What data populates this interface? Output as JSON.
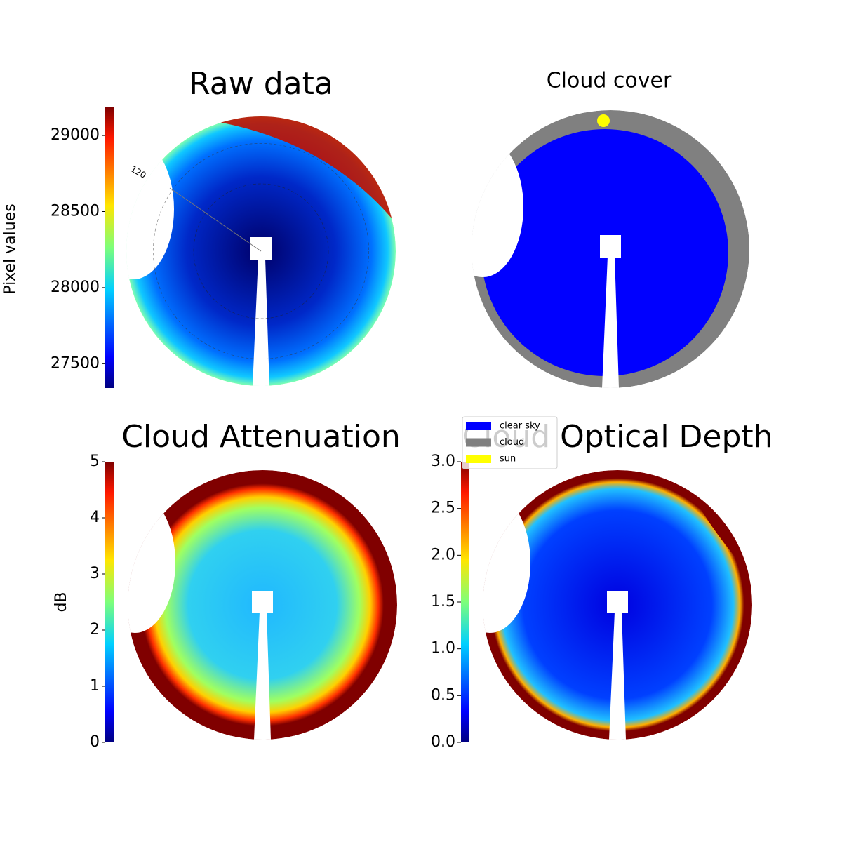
{
  "chart_data": [
    {
      "type": "image",
      "title": "Raw data",
      "colorbar": {
        "label": "Pixel values",
        "lim": [
          27340,
          29185
        ],
        "ticks": [
          27500,
          28000,
          28500,
          29000
        ]
      },
      "annotations": [
        "120"
      ]
    },
    {
      "type": "image",
      "title": "Cloud cover",
      "series": [
        {
          "name": "clear sky",
          "color": "#0000ff"
        },
        {
          "name": "cloud",
          "color": "#808080"
        },
        {
          "name": "sun",
          "color": "#ffff00"
        }
      ]
    },
    {
      "type": "image",
      "title": "Cloud Attenuation",
      "colorbar": {
        "label": "dB",
        "lim": [
          0,
          5
        ],
        "ticks": [
          0,
          1,
          2,
          3,
          4,
          5
        ]
      }
    },
    {
      "type": "image",
      "title": "Cloud Optical Depth",
      "colorbar": {
        "lim": [
          0,
          3
        ],
        "ticks": [
          {
            "value": 0,
            "label": "0.0"
          },
          {
            "value": 0.5,
            "label": "0.5"
          },
          {
            "value": 1,
            "label": "1.0"
          },
          {
            "value": 1.5,
            "label": "1.5"
          },
          {
            "value": 2,
            "label": "2.0"
          },
          {
            "value": 2.5,
            "label": "2.5"
          },
          {
            "value": 3,
            "label": "3.0"
          }
        ]
      }
    }
  ]
}
